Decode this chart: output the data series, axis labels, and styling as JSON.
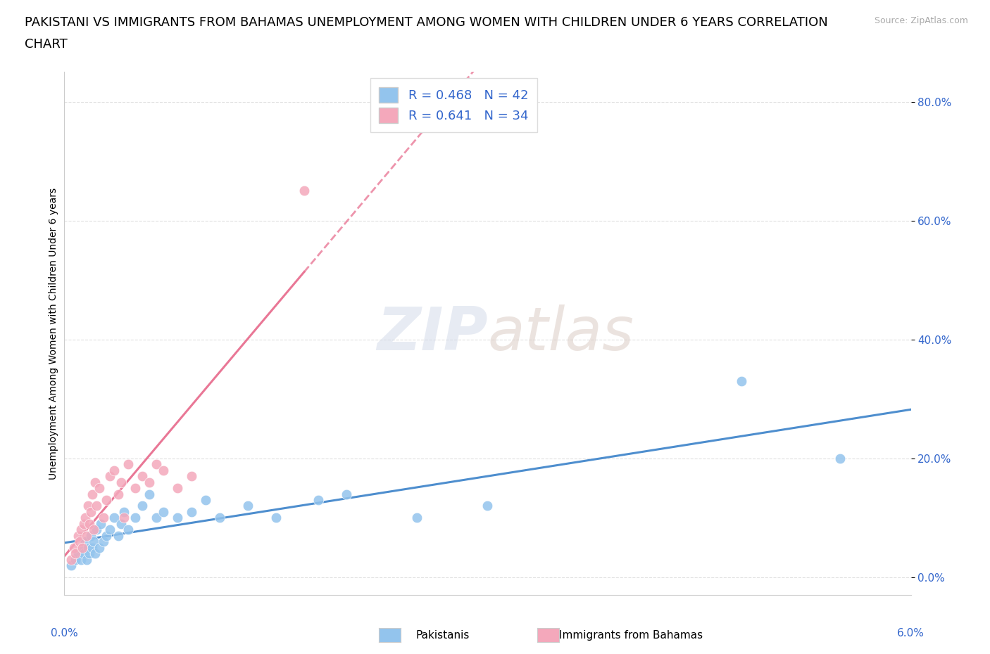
{
  "title_line1": "PAKISTANI VS IMMIGRANTS FROM BAHAMAS UNEMPLOYMENT AMONG WOMEN WITH CHILDREN UNDER 6 YEARS CORRELATION",
  "title_line2": "CHART",
  "source": "Source: ZipAtlas.com",
  "ylabel": "Unemployment Among Women with Children Under 6 years",
  "xlim": [
    0.0,
    6.0
  ],
  "ylim": [
    -3.0,
    85.0
  ],
  "yticks": [
    0,
    20,
    40,
    60,
    80
  ],
  "ytick_labels": [
    "0.0%",
    "20.0%",
    "40.0%",
    "60.0%",
    "80.0%"
  ],
  "blue_color": "#93c4ed",
  "pink_color": "#f4a8bb",
  "blue_line_color": "#4488cc",
  "pink_line_color": "#e87090",
  "legend_blue_label": "R = 0.468   N = 42",
  "legend_pink_label": "R = 0.641   N = 34",
  "legend_text_color": "#3366cc",
  "grid_color": "#cccccc",
  "background_color": "#ffffff",
  "title_fontsize": 13,
  "axis_label_fontsize": 10,
  "tick_fontsize": 11,
  "legend_fontsize": 13,
  "pakistanis_x": [
    0.05,
    0.08,
    0.1,
    0.12,
    0.13,
    0.14,
    0.15,
    0.16,
    0.17,
    0.18,
    0.19,
    0.2,
    0.21,
    0.22,
    0.23,
    0.25,
    0.26,
    0.28,
    0.3,
    0.32,
    0.35,
    0.38,
    0.4,
    0.42,
    0.45,
    0.5,
    0.55,
    0.6,
    0.65,
    0.7,
    0.8,
    0.9,
    1.0,
    1.1,
    1.3,
    1.5,
    1.8,
    2.0,
    2.5,
    3.0,
    4.8,
    5.5
  ],
  "pakistanis_y": [
    2,
    3,
    4,
    3,
    5,
    4,
    6,
    3,
    5,
    4,
    7,
    5,
    6,
    4,
    8,
    5,
    9,
    6,
    7,
    8,
    10,
    7,
    9,
    11,
    8,
    10,
    12,
    14,
    10,
    11,
    10,
    11,
    13,
    10,
    12,
    10,
    13,
    14,
    10,
    12,
    33,
    20
  ],
  "bahamas_x": [
    0.05,
    0.07,
    0.08,
    0.1,
    0.11,
    0.12,
    0.13,
    0.14,
    0.15,
    0.16,
    0.17,
    0.18,
    0.19,
    0.2,
    0.21,
    0.22,
    0.23,
    0.25,
    0.28,
    0.3,
    0.32,
    0.35,
    0.38,
    0.4,
    0.42,
    0.45,
    0.5,
    0.55,
    0.6,
    0.65,
    0.7,
    0.8,
    0.9,
    1.7
  ],
  "bahamas_y": [
    3,
    5,
    4,
    7,
    6,
    8,
    5,
    9,
    10,
    7,
    12,
    9,
    11,
    14,
    8,
    16,
    12,
    15,
    10,
    13,
    17,
    18,
    14,
    16,
    10,
    19,
    15,
    17,
    16,
    19,
    18,
    15,
    17,
    65
  ],
  "pak_trend_x_start": 0.0,
  "pak_trend_x_end": 6.0,
  "bah_trend_x_solid_end": 2.0,
  "bah_trend_x_dash_end": 6.0
}
